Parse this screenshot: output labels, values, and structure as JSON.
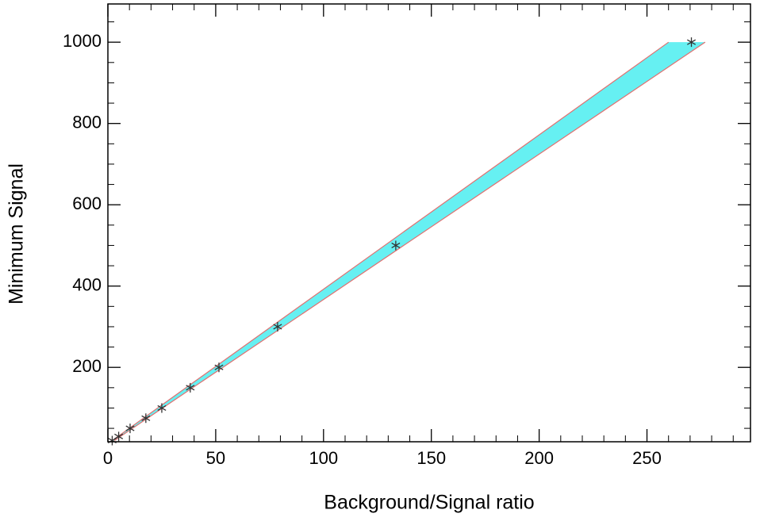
{
  "chart_data": {
    "type": "scatter",
    "xlabel": "Background/Signal ratio",
    "ylabel": "Minimum Signal",
    "xlim": [
      0,
      298
    ],
    "ylim": [
      17,
      1094
    ],
    "xticks": [
      0,
      50,
      100,
      150,
      200,
      250
    ],
    "yticks": [
      200,
      400,
      600,
      800,
      1000
    ],
    "x_minor_ticks": [
      10,
      20,
      30,
      40,
      60,
      70,
      80,
      90,
      110,
      120,
      130,
      140,
      160,
      170,
      180,
      190,
      210,
      220,
      230,
      240,
      260,
      270,
      280,
      290
    ],
    "y_minor_ticks": [
      50,
      100,
      150,
      250,
      300,
      350,
      450,
      500,
      550,
      650,
      700,
      750,
      850,
      900,
      950,
      1050
    ],
    "band": {
      "color": "#66f0f2",
      "edge_color": "#e07070",
      "y": [
        20,
        1000
      ],
      "x_left": [
        2,
        260
      ],
      "x_right": [
        3,
        277
      ]
    },
    "series": [
      {
        "color": "#333333",
        "x": [
          2,
          5,
          10.3,
          17.6,
          25,
          38.2,
          51.5,
          78.7,
          133.5,
          270.6
        ],
        "values": [
          20,
          30,
          50,
          75,
          100,
          150,
          200,
          300,
          500,
          1000
        ]
      }
    ]
  }
}
